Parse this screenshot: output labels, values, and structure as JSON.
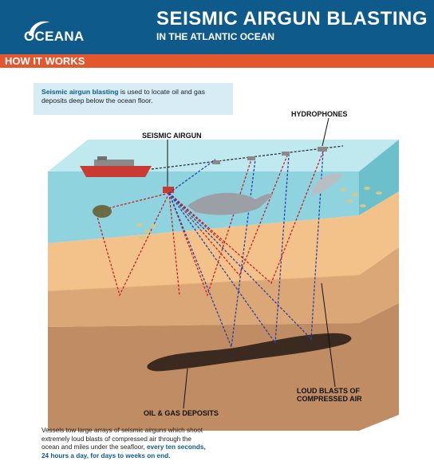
{
  "header": {
    "logo_text": "OCEANA",
    "title": "SEISMIC AIRGUN BLASTING",
    "subtitle": "IN THE ATLANTIC OCEAN"
  },
  "section": {
    "label": "HOW IT WORKS"
  },
  "intro": {
    "bold": "Seismic airgun blasting",
    "rest": " is used to locate oil and gas deposits deep below the ocean floor."
  },
  "labels": {
    "hydrophones": "HYDROPHONES",
    "airgun": "SEISMIC AIRGUN",
    "blasts_line1": "LOUD BLASTS OF",
    "blasts_line2": "COMPRESSED AIR",
    "deposits": "OIL & GAS DEPOSITS"
  },
  "outro": {
    "text": "Vessels tow large arrays of seismic airguns which shoot extremely loud blasts of compressed air through the ocean and miles under the seafloor, ",
    "bold": "every ten seconds, 24 hours a day, for days to weeks on end."
  },
  "colors": {
    "header_bg": "#0e5a8a",
    "bar_bg": "#e4572e",
    "water": "#8fd3de",
    "sand": "#f2c28a",
    "rock1": "#dba777",
    "rock2": "#c08c63",
    "oil": "#3a2a20",
    "red_wave": "#c8202a",
    "blue_wave": "#2a3fa8"
  }
}
